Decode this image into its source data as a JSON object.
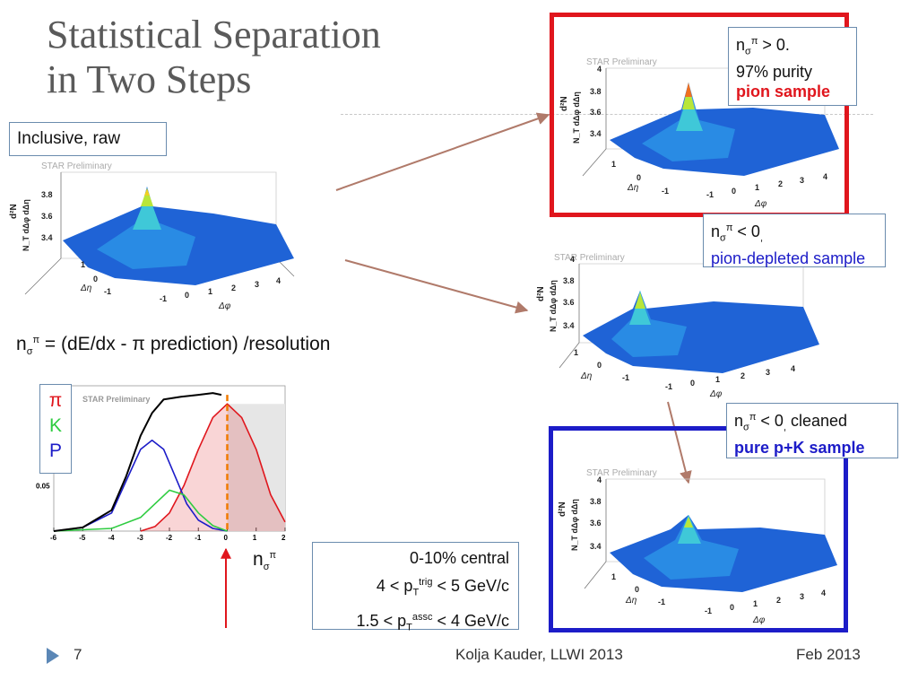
{
  "title": {
    "line1": "Statistical Separation",
    "line2": "in Two Steps"
  },
  "plots": {
    "inclusive": {
      "label": "Inclusive, raw",
      "watermark": "STAR Preliminary",
      "zlabel": "d²N",
      "zlabel2": "N_T dΔφ dΔη",
      "zticks": [
        "3.4",
        "3.6",
        "3.8"
      ],
      "deta_ticks": [
        "-1",
        "0",
        "1"
      ],
      "dphi_ticks": [
        "-1",
        "0",
        "1",
        "2",
        "3",
        "4"
      ],
      "deta_label": "Δη",
      "dphi_label": "Δφ"
    },
    "pion": {
      "line1_n": "n",
      "line1_sub": "σ",
      "line1_sup": "π",
      "line1_rest": " > 0.",
      "line2": "97% purity",
      "line3": "pion sample",
      "watermark": "STAR Preliminary",
      "zlabel": "d²N",
      "zlabel2": "N_T dΔφ dΔη",
      "zticks": [
        "3.4",
        "3.6",
        "3.8",
        "4"
      ],
      "deta_ticks": [
        "-1",
        "0",
        "1"
      ],
      "dphi_ticks": [
        "-1",
        "0",
        "1",
        "2",
        "3",
        "4"
      ],
      "deta_label": "Δη",
      "dphi_label": "Δφ"
    },
    "depleted": {
      "line1_n": "n",
      "line1_sub": "σ",
      "line1_sup": "π",
      "line1_rest": " < 0",
      "line1_tail": ",",
      "line2": "pion-depleted sample",
      "watermark": "STAR Preliminary",
      "zlabel": "d²N",
      "zlabel2": "N_T dΔφ dΔη",
      "zticks": [
        "3.4",
        "3.6",
        "3.8",
        "4"
      ],
      "deta_ticks": [
        "-1",
        "0",
        "1"
      ],
      "dphi_ticks": [
        "-1",
        "0",
        "1",
        "2",
        "3",
        "4"
      ],
      "deta_label": "Δη",
      "dphi_label": "Δφ"
    },
    "cleaned": {
      "line1_n": "n",
      "line1_sub": "σ",
      "line1_sup": "π",
      "line1_rest": " < 0",
      "line1_tail": ",",
      "line1_end": " cleaned",
      "line2": "pure p+K sample",
      "watermark": "STAR Preliminary",
      "zlabel": "d²N",
      "zlabel2": "N_T dΔφ dΔη",
      "zticks": [
        "3.4",
        "3.6",
        "3.8",
        "4"
      ],
      "deta_ticks": [
        "-1",
        "0",
        "1"
      ],
      "dphi_ticks": [
        "-1",
        "0",
        "1",
        "2",
        "3",
        "4"
      ],
      "deta_label": "Δη",
      "dphi_label": "Δφ"
    }
  },
  "formula": {
    "n": "n",
    "sub": "σ",
    "sup": "π",
    "rest": " = (dE/dx - π prediction) /resolution"
  },
  "species": {
    "pi": "π",
    "k": "K",
    "p": "P"
  },
  "nsig_label": {
    "n": "n",
    "sub": "σ",
    "sup": "π"
  },
  "info": {
    "line1": "0-10% central",
    "l2a": "4 < p",
    "l2sub": "T",
    "l2sup": "trig",
    "l2b": " < 5 GeV/c",
    "l3a": "1.5 < p",
    "l3sub": "T",
    "l3sup": "assc",
    "l3b": " < 4 GeV/c"
  },
  "footer": {
    "page": "7",
    "author": "Kolja Kauder, LLWI 2013",
    "date": "Feb 2013"
  },
  "colors": {
    "red": "#e0161d",
    "blue": "#1c1cc8",
    "green": "#2ecc40",
    "accent": "#6b8cae",
    "arrow": "#b07a6a"
  },
  "chart_data": {
    "type": "line",
    "watermark": "STAR Preliminary",
    "xlabel": "",
    "ylabel": "",
    "x_ticks": [
      "-6",
      "-5",
      "-4",
      "-3",
      "-2",
      "-1",
      "0",
      "1",
      "2"
    ],
    "y_ticks": [
      "0.05"
    ],
    "xlim": [
      -6,
      2
    ],
    "ylim": [
      0,
      0.16
    ],
    "series": [
      {
        "name": "",
        "color": "#e0161d",
        "points": [
          [
            -3,
            0
          ],
          [
            -2.5,
            0.005
          ],
          [
            -2,
            0.02
          ],
          [
            -1.5,
            0.05
          ],
          [
            -1,
            0.09
          ],
          [
            -0.5,
            0.125
          ],
          [
            0,
            0.14
          ],
          [
            0.5,
            0.125
          ],
          [
            1,
            0.09
          ],
          [
            1.5,
            0.04
          ],
          [
            2,
            0.01
          ]
        ]
      },
      {
        "name": "",
        "color": "#1c1cc8",
        "points": [
          [
            -6,
            0
          ],
          [
            -5,
            0.004
          ],
          [
            -4,
            0.02
          ],
          [
            -3.5,
            0.055
          ],
          [
            -3,
            0.09
          ],
          [
            -2.6,
            0.1
          ],
          [
            -2.2,
            0.09
          ],
          [
            -1.8,
            0.06
          ],
          [
            -1.4,
            0.03
          ],
          [
            -1,
            0.012
          ],
          [
            -0.5,
            0.003
          ],
          [
            0,
            0
          ]
        ]
      },
      {
        "name": "",
        "color": "#2ecc40",
        "points": [
          [
            -6,
            0
          ],
          [
            -4,
            0.003
          ],
          [
            -3,
            0.015
          ],
          [
            -2.5,
            0.03
          ],
          [
            -2,
            0.045
          ],
          [
            -1.5,
            0.04
          ],
          [
            -1,
            0.02
          ],
          [
            -0.5,
            0.006
          ],
          [
            0,
            0
          ]
        ]
      },
      {
        "name": "",
        "color": "#000000",
        "points": [
          [
            -6,
            0
          ],
          [
            -5,
            0.004
          ],
          [
            -4,
            0.023
          ],
          [
            -3.5,
            0.06
          ],
          [
            -3,
            0.105
          ],
          [
            -2.6,
            0.13
          ],
          [
            -2.2,
            0.145
          ],
          [
            -1.6,
            0.148
          ],
          [
            -1,
            0.15
          ],
          [
            -0.5,
            0.152
          ],
          [
            -0.2,
            0.15
          ]
        ]
      }
    ]
  }
}
